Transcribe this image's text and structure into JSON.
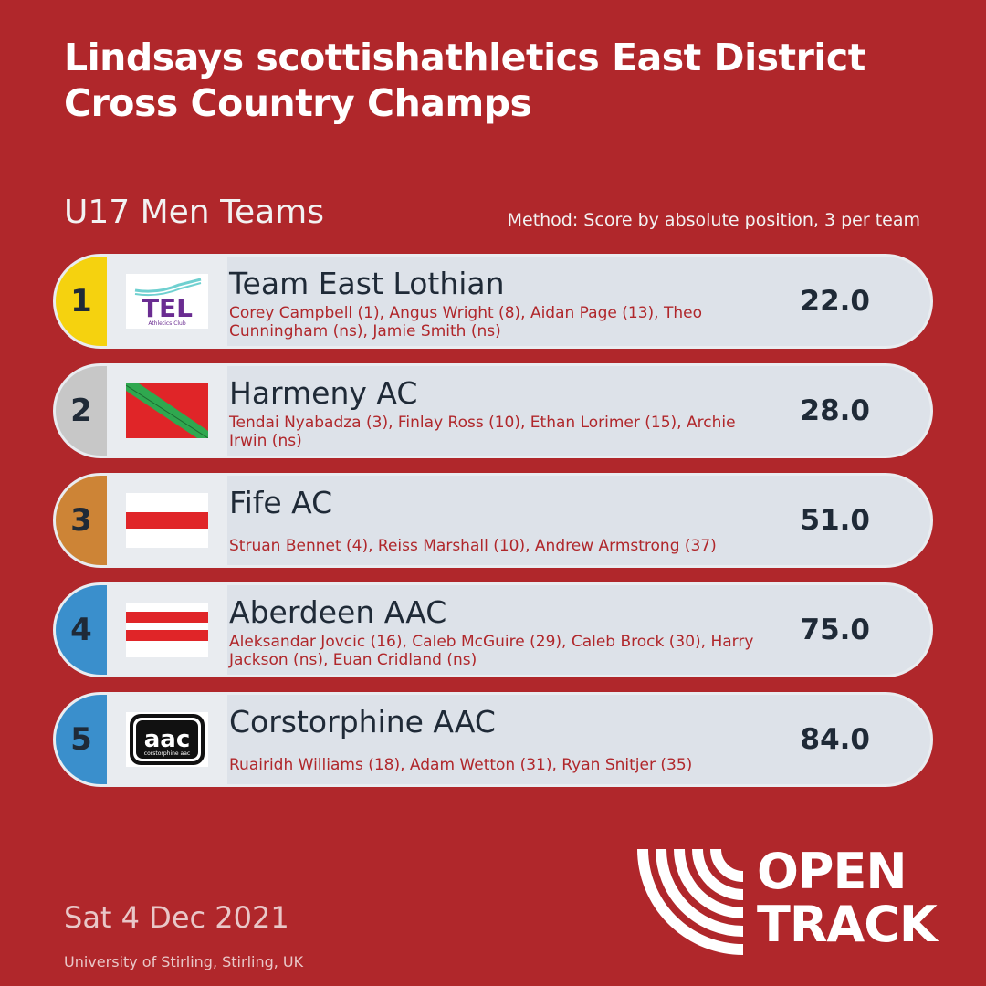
{
  "header": {
    "title": "Lindsays scottishathletics East District Cross Country Champs",
    "category": "U17 Men Teams",
    "method": "Method: Score by absolute position, 3 per team"
  },
  "teams": [
    {
      "rank": "1",
      "name": "Team East Lothian",
      "members": "Corey Campbell (1), Angus Wright (8), Aidan Page (13), Theo Cunningham (ns), Jamie Smith (ns)",
      "score": "22.0",
      "rank_color": "#f5d20f",
      "logo_text": "TEL",
      "logo_subtext": "Athletics Club"
    },
    {
      "rank": "2",
      "name": "Harmeny AC",
      "members": "Tendai Nyabadza (3), Finlay Ross (10), Ethan Lorimer (15), Archie Irwin (ns)",
      "score": "28.0",
      "rank_color": "#c7c7c7"
    },
    {
      "rank": "3",
      "name": "Fife AC",
      "members": "Struan Bennet (4), Reiss Marshall (10), Andrew Armstrong (37)",
      "score": "51.0",
      "rank_color": "#cd8436"
    },
    {
      "rank": "4",
      "name": "Aberdeen AAC",
      "members": "Aleksandar Jovcic (16), Caleb McGuire (29), Caleb Brock (30), Harry Jackson (ns), Euan Cridland (ns)",
      "score": "75.0",
      "rank_color": "#3a8fcc"
    },
    {
      "rank": "5",
      "name": "Corstorphine AAC",
      "members": "Ruairidh Williams (18), Adam Wetton (31), Ryan Snitjer (35)",
      "score": "84.0",
      "rank_color": "#3a8fcc",
      "logo_text": "aac",
      "logo_subtext": "corstorphine aac"
    }
  ],
  "footer": {
    "date": "Sat 4 Dec 2021",
    "venue": "University of Stirling, Stirling, UK",
    "brand_line1": "OPEN",
    "brand_line2": "TRACK"
  }
}
